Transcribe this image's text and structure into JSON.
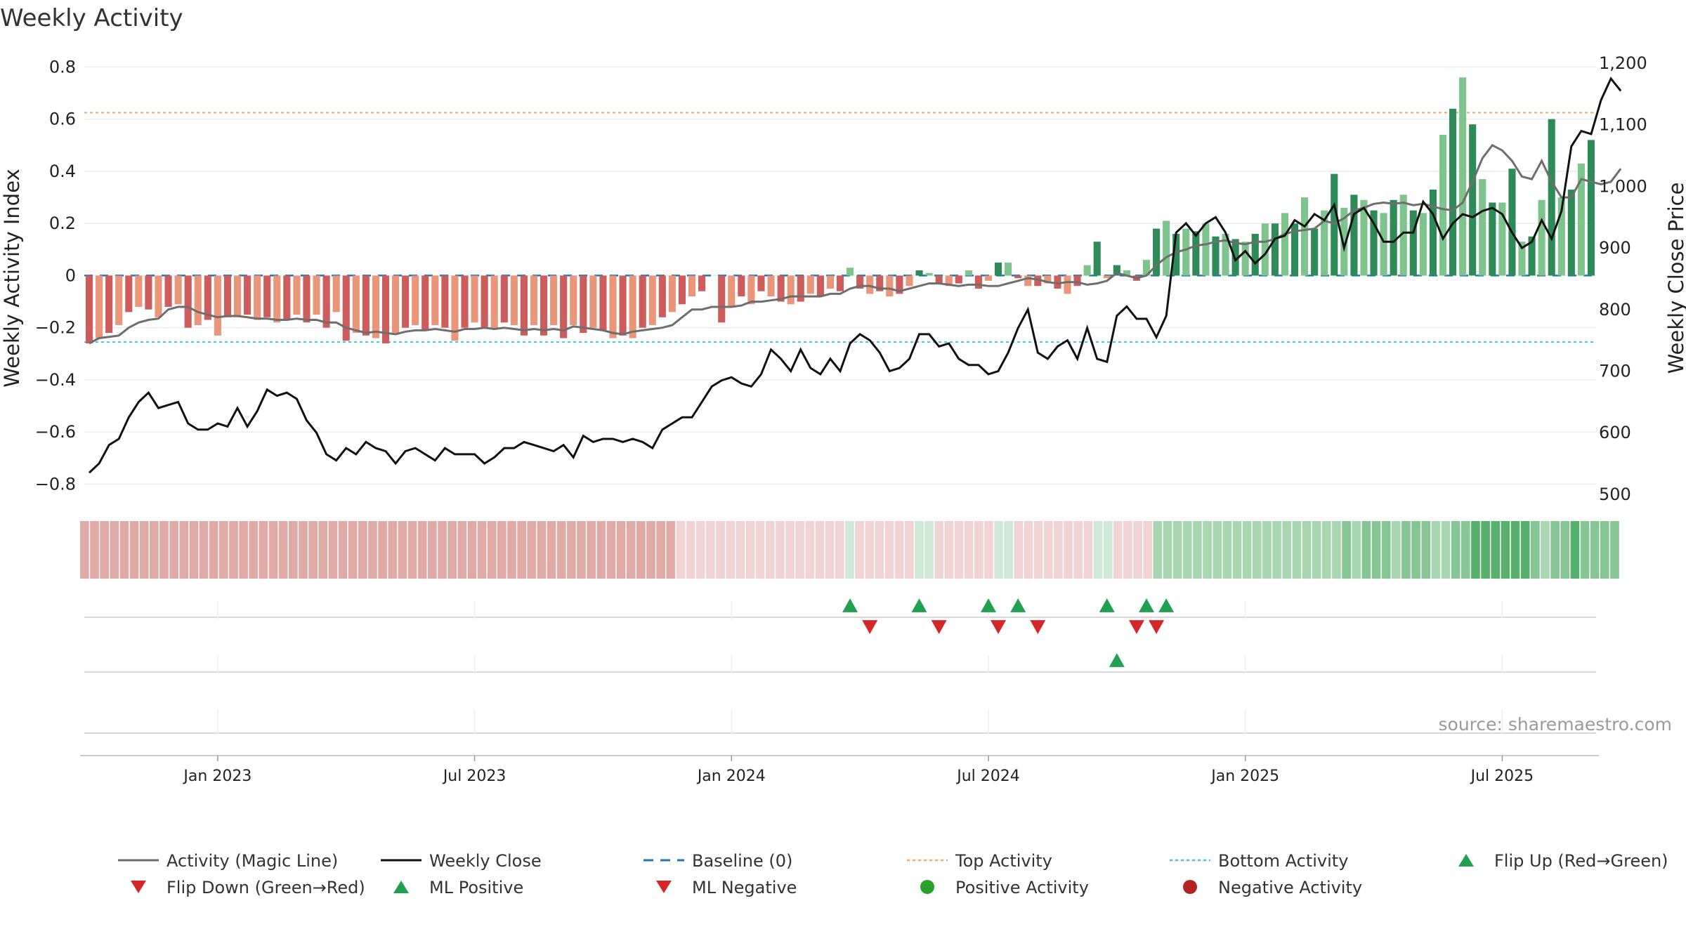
{
  "colors": {
    "pos_dark": "#2e8b57",
    "pos_light": "#7fc48c",
    "neg_dark": "#cd5c5c",
    "neg_light": "#e9967a",
    "magic_line": "#6e6e6e",
    "close_line": "#111111",
    "baseline": "#1f77b4",
    "top_line": "#f4a460",
    "bottom_line": "#40c8d8",
    "marker_up": "#22a052",
    "marker_down": "#d62728",
    "positive_dot": "#2ca02c",
    "negative_dot": "#b22222",
    "source": "#9a9a9a"
  },
  "chart_data": {
    "type": "bar+line",
    "title": "Weekly Activity",
    "y_left_label": "Weekly Activity Index",
    "y_right_label": "Weekly Close Price",
    "y_left_range": [
      -0.85,
      0.82
    ],
    "y_left_ticks": [
      "0.8",
      "0.6",
      "0.4",
      "0.2",
      "0",
      "−0.2",
      "−0.4",
      "−0.6",
      "−0.8"
    ],
    "y_left_tick_values": [
      0.8,
      0.6,
      0.4,
      0.2,
      0,
      -0.2,
      -0.4,
      -0.6,
      -0.8
    ],
    "y_right_ticks": [
      "1,200",
      "1,100",
      "1,000",
      "900",
      "800",
      "700",
      "600",
      "500"
    ],
    "y_right_tick_values": [
      1200,
      1100,
      1000,
      900,
      800,
      700,
      600,
      500
    ],
    "x_labels": [
      "Jan 2023",
      "Jul 2023",
      "Jan 2024",
      "Jul 2024",
      "Jan 2025",
      "Jul 2025"
    ],
    "x_label_weeks": [
      13,
      39,
      65,
      91,
      117,
      143
    ],
    "top_activity": 0.625,
    "bottom_activity": -0.255,
    "baseline": 0,
    "activity": [
      -0.26,
      -0.24,
      -0.22,
      -0.19,
      -0.14,
      -0.12,
      -0.13,
      -0.16,
      -0.12,
      -0.11,
      -0.2,
      -0.19,
      -0.17,
      -0.23,
      -0.16,
      -0.16,
      -0.15,
      -0.17,
      -0.16,
      -0.18,
      -0.17,
      -0.15,
      -0.18,
      -0.15,
      -0.2,
      -0.14,
      -0.25,
      -0.22,
      -0.23,
      -0.24,
      -0.26,
      -0.22,
      -0.2,
      -0.19,
      -0.21,
      -0.19,
      -0.2,
      -0.25,
      -0.2,
      -0.18,
      -0.2,
      -0.2,
      -0.18,
      -0.19,
      -0.23,
      -0.19,
      -0.23,
      -0.19,
      -0.24,
      -0.19,
      -0.22,
      -0.2,
      -0.21,
      -0.24,
      -0.23,
      -0.24,
      -0.2,
      -0.19,
      -0.16,
      -0.14,
      -0.11,
      -0.08,
      -0.06,
      0,
      -0.18,
      -0.12,
      -0.08,
      -0.11,
      -0.06,
      -0.08,
      -0.1,
      -0.11,
      -0.1,
      -0.07,
      -0.08,
      -0.05,
      -0.06,
      0.03,
      -0.05,
      -0.07,
      -0.06,
      -0.08,
      -0.07,
      -0.04,
      0.02,
      0.01,
      -0.03,
      -0.04,
      -0.03,
      0.02,
      -0.05,
      -0.02,
      0.05,
      0.05,
      -0.01,
      -0.04,
      -0.04,
      -0.03,
      -0.05,
      -0.07,
      -0.04,
      0.04,
      0.13,
      -0.01,
      0.04,
      0.02,
      -0.02,
      0.06,
      0.18,
      0.21,
      0.16,
      0.18,
      0.17,
      0.2,
      0.15,
      0.16,
      0.14,
      0.13,
      0.16,
      0.2,
      0.2,
      0.24,
      0.2,
      0.3,
      0.18,
      0.25,
      0.39,
      0.26,
      0.31,
      0.29,
      0.25,
      0.24,
      0.29,
      0.31,
      0.25,
      0.24,
      0.33,
      0.54,
      0.64,
      0.76,
      0.58,
      0.37,
      0.28,
      0.28,
      0.41,
      0.13,
      0.15,
      0.29,
      0.6,
      0.3,
      0.33,
      0.43,
      0.52
    ],
    "magic_line": [
      -0.26,
      -0.24,
      -0.235,
      -0.23,
      -0.2,
      -0.18,
      -0.17,
      -0.165,
      -0.13,
      -0.12,
      -0.12,
      -0.14,
      -0.15,
      -0.16,
      -0.155,
      -0.155,
      -0.16,
      -0.165,
      -0.165,
      -0.17,
      -0.17,
      -0.165,
      -0.17,
      -0.17,
      -0.18,
      -0.18,
      -0.2,
      -0.21,
      -0.22,
      -0.215,
      -0.22,
      -0.225,
      -0.215,
      -0.21,
      -0.21,
      -0.205,
      -0.21,
      -0.215,
      -0.205,
      -0.205,
      -0.2,
      -0.205,
      -0.2,
      -0.205,
      -0.21,
      -0.205,
      -0.21,
      -0.205,
      -0.21,
      -0.195,
      -0.2,
      -0.205,
      -0.21,
      -0.22,
      -0.225,
      -0.215,
      -0.21,
      -0.205,
      -0.2,
      -0.19,
      -0.16,
      -0.13,
      -0.13,
      -0.12,
      -0.12,
      -0.12,
      -0.115,
      -0.1,
      -0.1,
      -0.095,
      -0.09,
      -0.08,
      -0.08,
      -0.08,
      -0.08,
      -0.07,
      -0.07,
      -0.05,
      -0.04,
      -0.04,
      -0.05,
      -0.05,
      -0.06,
      -0.05,
      -0.04,
      -0.03,
      -0.03,
      -0.035,
      -0.04,
      -0.035,
      -0.035,
      -0.04,
      -0.04,
      -0.03,
      -0.02,
      -0.01,
      -0.015,
      -0.025,
      -0.03,
      -0.025,
      -0.025,
      -0.035,
      -0.03,
      -0.02,
      0.01,
      0,
      -0.01,
      0.0,
      0.04,
      0.07,
      0.09,
      0.1,
      0.115,
      0.12,
      0.13,
      0.135,
      0.125,
      0.12,
      0.13,
      0.13,
      0.14,
      0.16,
      0.17,
      0.175,
      0.18,
      0.21,
      0.2,
      0.22,
      0.25,
      0.26,
      0.275,
      0.28,
      0.275,
      0.28,
      0.27,
      0.275,
      0.265,
      0.255,
      0.25,
      0.28,
      0.36,
      0.45,
      0.5,
      0.48,
      0.44,
      0.38,
      0.37,
      0.44,
      0.36,
      0.3,
      0.3,
      0.37,
      0.36,
      0.35,
      0.36,
      0.41
    ],
    "weekly_close": [
      535,
      550,
      580,
      590,
      625,
      650,
      665,
      640,
      645,
      650,
      615,
      605,
      605,
      615,
      610,
      640,
      610,
      635,
      670,
      660,
      665,
      655,
      620,
      600,
      565,
      555,
      575,
      565,
      585,
      575,
      570,
      550,
      570,
      575,
      565,
      555,
      575,
      565,
      565,
      565,
      550,
      560,
      575,
      575,
      585,
      580,
      575,
      570,
      580,
      560,
      595,
      585,
      590,
      590,
      585,
      590,
      585,
      575,
      605,
      615,
      625,
      625,
      650,
      675,
      685,
      690,
      680,
      675,
      695,
      735,
      720,
      700,
      735,
      705,
      695,
      720,
      700,
      745,
      760,
      750,
      730,
      700,
      705,
      720,
      760,
      760,
      740,
      745,
      720,
      710,
      710,
      695,
      700,
      730,
      770,
      800,
      730,
      720,
      740,
      750,
      720,
      770,
      720,
      715,
      790,
      805,
      785,
      785,
      755,
      790,
      925,
      940,
      920,
      940,
      950,
      925,
      880,
      895,
      875,
      890,
      915,
      920,
      945,
      935,
      955,
      945,
      970,
      900,
      955,
      965,
      940,
      910,
      910,
      925,
      925,
      975,
      955,
      915,
      940,
      955,
      950,
      960,
      965,
      955,
      925,
      900,
      910,
      945,
      915,
      960,
      1065,
      1090,
      1085,
      1140,
      1175,
      1155
    ],
    "color_band": [
      2,
      2,
      2,
      2,
      2,
      2,
      2,
      2,
      2,
      2,
      2,
      2,
      2,
      2,
      2,
      2,
      2,
      2,
      2,
      2,
      2,
      2,
      2,
      2,
      2,
      2,
      2,
      2,
      2,
      2,
      2,
      2,
      2,
      2,
      2,
      2,
      2,
      2,
      2,
      2,
      2,
      2,
      2,
      2,
      2,
      2,
      2,
      2,
      2,
      2,
      2,
      2,
      2,
      2,
      2,
      2,
      2,
      2,
      2,
      2,
      1,
      1,
      1,
      1,
      1,
      1,
      1,
      1,
      1,
      1,
      1,
      1,
      1,
      1,
      1,
      1,
      1,
      0,
      1,
      1,
      1,
      1,
      1,
      1,
      0,
      0,
      1,
      1,
      1,
      1,
      1,
      1,
      0,
      0,
      1,
      1,
      1,
      1,
      1,
      1,
      1,
      1,
      0,
      0,
      1,
      1,
      1,
      1,
      3,
      3,
      3,
      3,
      3,
      3,
      3,
      3,
      3,
      3,
      3,
      3,
      3,
      3,
      3,
      3,
      3,
      3,
      3,
      4,
      3,
      4,
      4,
      4,
      3,
      4,
      4,
      4,
      3,
      3,
      4,
      4,
      5,
      5,
      5,
      5,
      5,
      5,
      4,
      3,
      4,
      4,
      5,
      4,
      4,
      4,
      4
    ],
    "flip_up_weeks": [
      77,
      84,
      91,
      94,
      103,
      107,
      109
    ],
    "flip_down_weeks": [
      79,
      86,
      92,
      96,
      106,
      108
    ],
    "ml_positive_weeks": [
      104
    ],
    "ml_negative_weeks": [],
    "positive_activity_weeks": [],
    "negative_activity_weeks": []
  },
  "source": "source: sharemaestro.com",
  "legend": [
    {
      "label": "Activity (Magic Line)",
      "kind": "line",
      "color_key": "magic_line"
    },
    {
      "label": "Weekly Close",
      "kind": "line",
      "color_key": "close_line"
    },
    {
      "label": "Baseline (0)",
      "kind": "dash",
      "color_key": "baseline"
    },
    {
      "label": "Top Activity",
      "kind": "dot-line",
      "color_key": "top_line"
    },
    {
      "label": "Bottom Activity",
      "kind": "dot-line",
      "color_key": "bottom_line"
    },
    {
      "label": "Flip Up (Red→Green)",
      "kind": "tri-up",
      "color_key": "marker_up"
    },
    {
      "label": "Flip Down (Green→Red)",
      "kind": "tri-down",
      "color_key": "marker_down"
    },
    {
      "label": "ML Positive",
      "kind": "tri-up",
      "color_key": "marker_up"
    },
    {
      "label": "ML Negative",
      "kind": "tri-down",
      "color_key": "marker_down"
    },
    {
      "label": "Positive Activity",
      "kind": "circle",
      "color_key": "positive_dot"
    },
    {
      "label": "Negative Activity",
      "kind": "circle",
      "color_key": "negative_dot"
    }
  ]
}
